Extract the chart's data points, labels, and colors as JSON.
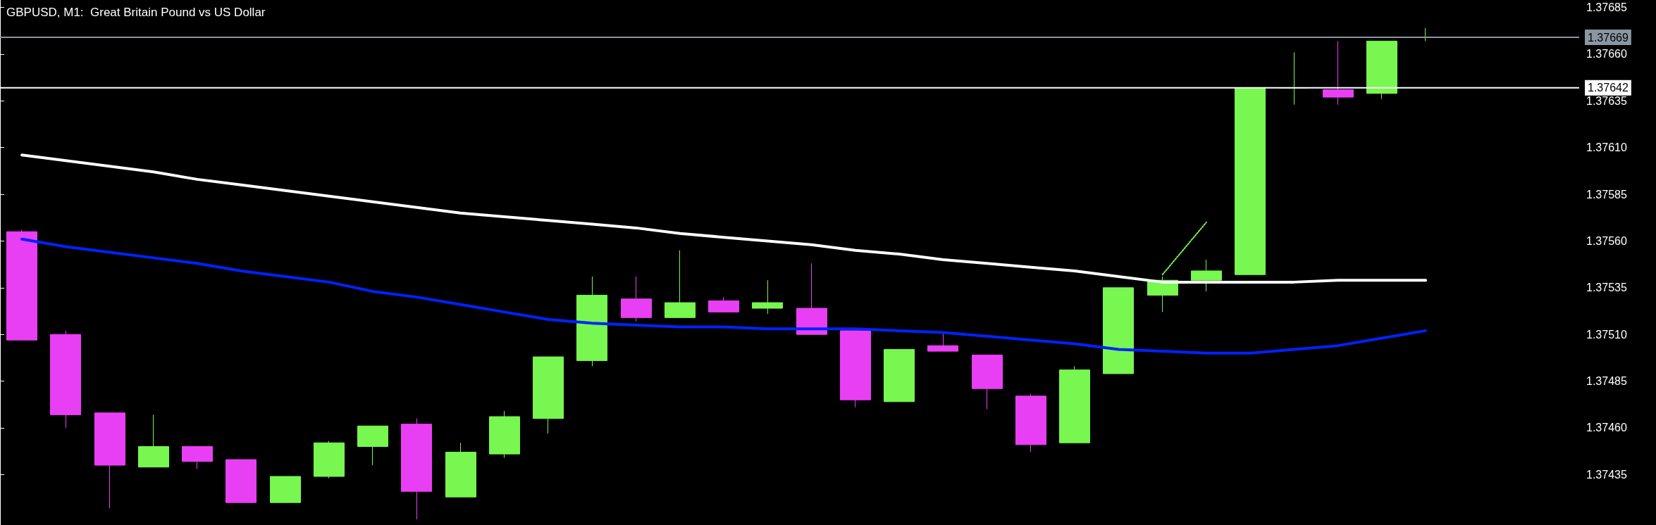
{
  "chart_data": {
    "type": "candlestick",
    "title": "GBPUSD, M1:  Great Britain Pound vs US Dollar",
    "categories": [
      null,
      null,
      null,
      null,
      null,
      null,
      null,
      null,
      null,
      null,
      null,
      null,
      null,
      null,
      null,
      null,
      null,
      null,
      null,
      null,
      null,
      null,
      null,
      null,
      null,
      null,
      null,
      null,
      null,
      null,
      null,
      null,
      null,
      null,
      null,
      null
    ],
    "ohlc": [
      [
        1.37565,
        1.37566,
        1.37507,
        1.37507
      ],
      [
        1.3751,
        1.37512,
        1.3746,
        1.37467
      ],
      [
        1.37468,
        1.37468,
        1.37417,
        1.3744
      ],
      [
        1.37439,
        1.37467,
        1.37439,
        1.3745
      ],
      [
        1.3745,
        1.3745,
        1.37438,
        1.37442
      ],
      [
        1.37443,
        1.37443,
        1.3742,
        1.3742
      ],
      [
        1.3742,
        1.37434,
        1.3742,
        1.37434
      ],
      [
        1.37434,
        1.37453,
        1.37433,
        1.37452
      ],
      [
        1.3745,
        1.37461,
        1.3744,
        1.37461
      ],
      [
        1.37462,
        1.37465,
        1.37411,
        1.37426
      ],
      [
        1.37423,
        1.37452,
        1.37423,
        1.37447
      ],
      [
        1.37446,
        1.37469,
        1.37444,
        1.37466
      ],
      [
        1.37465,
        1.37498,
        1.37457,
        1.37498
      ],
      [
        1.37496,
        1.37541,
        1.37493,
        1.37531
      ],
      [
        1.37529,
        1.37541,
        1.37517,
        1.37519
      ],
      [
        1.37519,
        1.37555,
        1.37519,
        1.37527
      ],
      [
        1.37528,
        1.3753,
        1.37522,
        1.37522
      ],
      [
        1.37524,
        1.37539,
        1.37521,
        1.37527
      ],
      [
        1.37524,
        1.37548,
        1.3751,
        1.3751
      ],
      [
        1.37512,
        1.37512,
        1.37471,
        1.37475
      ],
      [
        1.37474,
        1.37502,
        1.37474,
        1.37502
      ],
      [
        1.37504,
        1.37511,
        1.37501,
        1.37501
      ],
      [
        1.37499,
        1.37499,
        1.3747,
        1.37481
      ],
      [
        1.37477,
        1.37478,
        1.37447,
        1.37451
      ],
      [
        1.37452,
        1.37493,
        1.37452,
        1.37491
      ],
      [
        1.37489,
        1.37535,
        1.37489,
        1.37535
      ],
      [
        1.37531,
        1.37541,
        1.37522,
        1.37539
      ],
      [
        1.37539,
        1.3755,
        1.37533,
        1.37544
      ],
      [
        1.37542,
        1.37642,
        1.37542,
        1.37642
      ],
      [
        1.37642,
        1.37661,
        1.37633,
        1.37642
      ],
      [
        1.37641,
        1.37667,
        1.37633,
        1.37637
      ],
      [
        1.37639,
        1.37667,
        1.37636,
        1.37667
      ],
      [
        1.37669,
        1.37674,
        1.37667,
        1.37669
      ],
      null,
      null,
      null
    ],
    "colors": [
      "#e93ff4",
      "#e93ff4",
      "#e93ff4",
      "#77f74f",
      "#e93ff4",
      "#e93ff4",
      "#77f74f",
      "#77f74f",
      "#77f74f",
      "#e93ff4",
      "#77f74f",
      "#77f74f",
      "#77f74f",
      "#77f74f",
      "#e93ff4",
      "#77f74f",
      "#e93ff4",
      "#77f74f",
      "#e93ff4",
      "#e93ff4",
      "#77f74f",
      "#e93ff4",
      "#e93ff4",
      "#e93ff4",
      "#77f74f",
      "#77f74f",
      "#77f74f",
      "#77f74f",
      "#77f74f",
      "#77f74f",
      "#e93ff4",
      "#77f74f",
      "#77f74f",
      null,
      null,
      null
    ],
    "series": [
      {
        "type": "line",
        "color": "#ffffff",
        "values": [
          1.37606,
          1.37603,
          1.376,
          1.37597,
          1.37593,
          1.3759,
          1.37587,
          1.37584,
          1.37581,
          1.37578,
          1.37575,
          1.37573,
          1.37571,
          1.37569,
          1.37567,
          1.37564,
          1.37562,
          1.3756,
          1.37558,
          1.37555,
          1.37553,
          1.3755,
          1.37548,
          1.37546,
          1.37544,
          1.37541,
          1.37538,
          1.37538,
          1.37538,
          1.37538,
          1.37539,
          1.37539,
          1.37539,
          null,
          null,
          null
        ]
      },
      {
        "type": "line",
        "color": "#0022ff",
        "values": [
          1.37561,
          1.37557,
          1.37554,
          1.37551,
          1.37548,
          1.37544,
          1.37541,
          1.37538,
          1.37533,
          1.3753,
          1.37526,
          1.37522,
          1.37518,
          1.37516,
          1.37515,
          1.37514,
          1.37514,
          1.37513,
          1.37513,
          1.37513,
          1.37512,
          1.37511,
          1.37509,
          1.37507,
          1.37505,
          1.37502,
          1.37501,
          1.375,
          1.375,
          1.37502,
          1.37504,
          1.37508,
          1.37512,
          null,
          null,
          null
        ]
      },
      {
        "type": "line",
        "color": "#77f74f",
        "line_style": "dotted",
        "values": [
          null,
          null,
          null,
          null,
          null,
          null,
          null,
          null,
          null,
          null,
          null,
          null,
          null,
          null,
          null,
          null,
          null,
          null,
          null,
          null,
          null,
          null,
          null,
          null,
          null,
          null,
          1.37542,
          1.3757,
          null,
          null,
          null,
          null,
          null,
          null,
          null,
          null
        ]
      }
    ],
    "ylim": [
      1.37408,
      1.37689
    ],
    "yticks": [
      1.37685,
      {
        "value": 1.3766,
        "label": "1.37660"
      },
      1.37635,
      {
        "value": 1.3761,
        "label": "1.37610"
      },
      1.37585,
      {
        "value": 1.3756,
        "label": "1.37560"
      },
      1.37535,
      {
        "value": 1.3751,
        "label": "1.37510"
      },
      1.37485,
      {
        "value": 1.3746,
        "label": "1.37460"
      },
      1.37435
    ],
    "ref_lines": [
      {
        "axis": "y",
        "value": 1.37669,
        "label": "1.37669",
        "color": "#8a97a3"
      },
      {
        "axis": "y",
        "value": 1.37642,
        "label": "1.37642",
        "color": "#ffffff"
      }
    ],
    "grid": false,
    "tick_labels": "y"
  }
}
